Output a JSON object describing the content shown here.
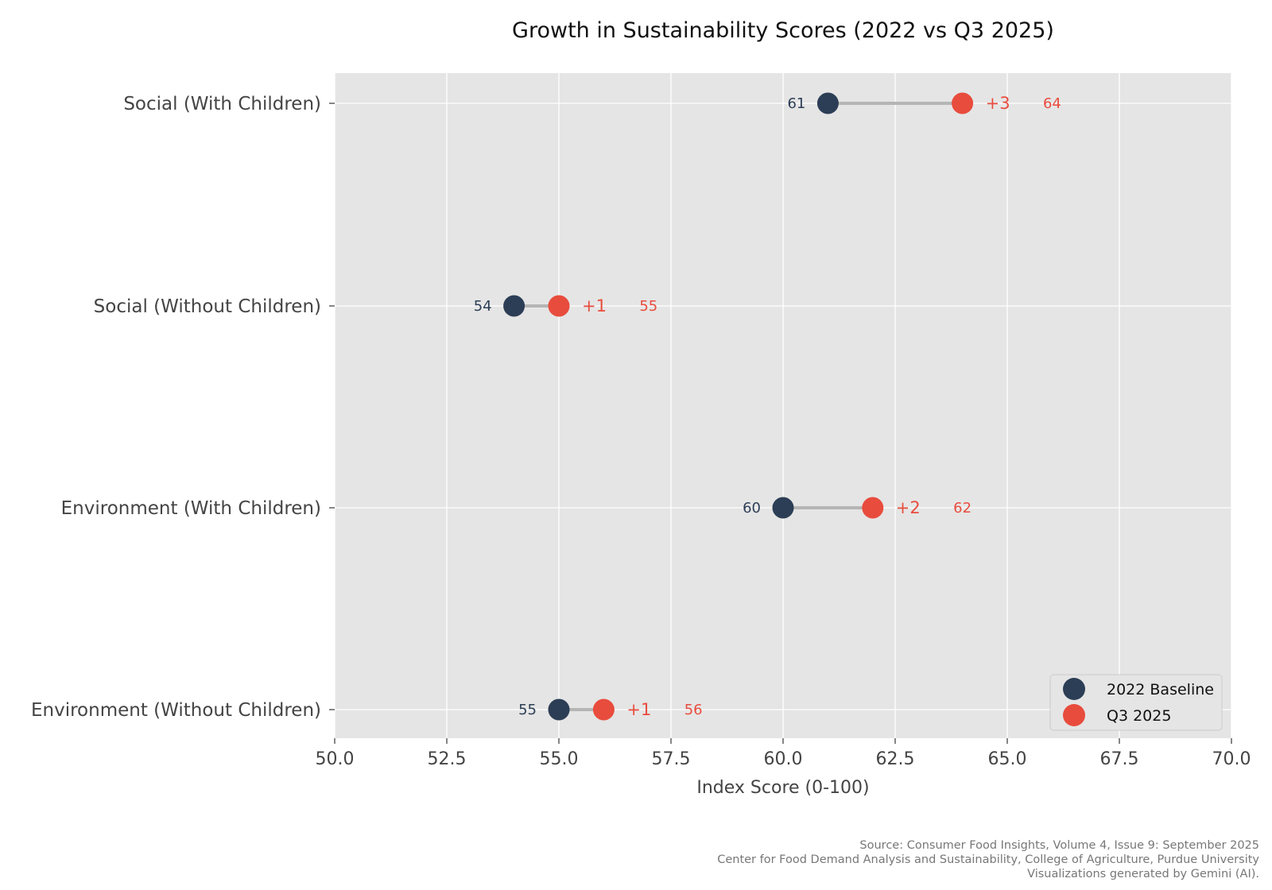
{
  "chart_data": {
    "type": "dumbbell",
    "title": "Growth in Sustainability Scores (2022 vs Q3 2025)",
    "xlabel": "Index Score (0-100)",
    "ylabel": "",
    "xlim": [
      50,
      70
    ],
    "xticks": [
      "50.0",
      "52.5",
      "55.0",
      "57.5",
      "60.0",
      "62.5",
      "65.0",
      "67.5",
      "70.0"
    ],
    "grid": true,
    "legend_position": "bottom-right",
    "categories": [
      "Social (With Children)",
      "Social (Without Children)",
      "Environment (With Children)",
      "Environment (Without Children)"
    ],
    "series": [
      {
        "name": "2022 Baseline",
        "color": "#2c3e55",
        "values": [
          61,
          54,
          60,
          55
        ],
        "labels": [
          "61",
          "54",
          "60",
          "55"
        ]
      },
      {
        "name": "Q3 2025",
        "color": "#e84c3d",
        "values": [
          64,
          55,
          62,
          56
        ],
        "labels": [
          "64",
          "55",
          "62",
          "56"
        ]
      }
    ],
    "deltas": [
      "+3",
      "+1",
      "+2",
      "+1"
    ],
    "colors": {
      "background": "#e5e5e5",
      "grid": "#ffffff",
      "connector": "#b5b5b5"
    }
  },
  "source": {
    "line1": "Source: Consumer Food Insights, Volume 4, Issue 9: September 2025",
    "line2": "Center for Food Demand Analysis and Sustainability, College of Agriculture, Purdue University",
    "line3": "Visualizations generated by Gemini (AI)."
  }
}
